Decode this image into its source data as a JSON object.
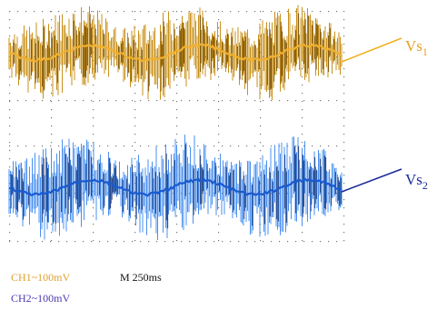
{
  "traces": [
    {
      "label": {
        "text": "Vs",
        "sub": "1"
      }
    },
    {
      "label": {
        "text": "Vs",
        "sub": "2"
      }
    }
  ],
  "channels": [
    "CH1~100mV",
    "CH2~100mV"
  ],
  "timebase": "M 250ms"
}
